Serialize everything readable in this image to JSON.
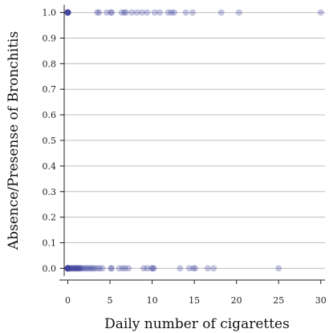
{
  "chart_data": {
    "type": "scatter",
    "xlabel": "Daily number of cigarettes",
    "ylabel": "Absence/Presense of Bronchitis",
    "xlim": [
      -1,
      30.5
    ],
    "ylim": [
      -0.03,
      1.03
    ],
    "x_ticks": [
      0,
      5,
      10,
      15,
      20,
      25,
      30
    ],
    "y_ticks": [
      0.0,
      0.1,
      0.2,
      0.3,
      0.4,
      0.5,
      0.6,
      0.7,
      0.8,
      0.9,
      1.0
    ],
    "y_tick_labels": [
      "0.0",
      "0.1",
      "0.2",
      "0.3",
      "0.4",
      "0.5",
      "0.6",
      "0.7",
      "0.8",
      "0.9",
      "1.0"
    ],
    "grid": "horizontal",
    "point_color": "#3b3f9a",
    "point_opacity": 0.3,
    "series": [
      {
        "values_x": [
          0,
          0,
          0,
          0,
          0,
          0,
          0,
          0,
          3.5,
          3.7,
          4.6,
          5.1,
          5.2,
          6.4,
          6.7,
          6.9,
          7.6,
          8.2,
          8.8,
          9.4,
          10.3,
          10.9,
          11.9,
          12.3,
          12.6,
          14.0,
          14.8,
          18.2,
          20.3,
          30.0
        ],
        "values_y": [
          1,
          1,
          1,
          1,
          1,
          1,
          1,
          1,
          1,
          1,
          1,
          1,
          1,
          1,
          1,
          1,
          1,
          1,
          1,
          1,
          1,
          1,
          1,
          1,
          1,
          1,
          1,
          1,
          1,
          1
        ]
      },
      {
        "values_x": [
          0,
          0,
          0,
          0,
          0,
          0,
          0,
          0,
          0,
          0,
          0.2,
          0.3,
          0.4,
          0.5,
          0.6,
          0.7,
          0.8,
          0.9,
          1.0,
          1.1,
          1.2,
          1.3,
          1.4,
          1.5,
          1.6,
          1.8,
          2.0,
          2.2,
          2.4,
          2.6,
          2.8,
          3.0,
          3.2,
          3.5,
          3.8,
          4.1,
          5.1,
          5.2,
          6.1,
          6.5,
          6.8,
          7.2,
          9.0,
          9.4,
          9.9,
          10.1,
          10.2,
          13.3,
          14.4,
          14.9,
          15.1,
          16.6,
          17.3,
          25.0
        ],
        "values_y": [
          0,
          0,
          0,
          0,
          0,
          0,
          0,
          0,
          0,
          0,
          0,
          0,
          0,
          0,
          0,
          0,
          0,
          0,
          0,
          0,
          0,
          0,
          0,
          0,
          0,
          0,
          0,
          0,
          0,
          0,
          0,
          0,
          0,
          0,
          0,
          0,
          0,
          0,
          0,
          0,
          0,
          0,
          0,
          0,
          0,
          0,
          0,
          0,
          0,
          0,
          0,
          0,
          0,
          0
        ]
      }
    ]
  }
}
